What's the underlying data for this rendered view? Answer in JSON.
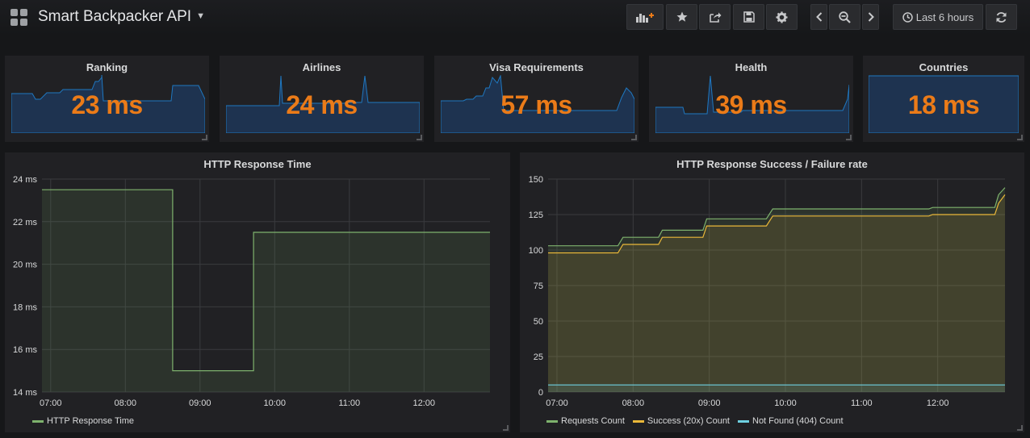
{
  "header": {
    "title": "Smart Backpacker API",
    "time_range": "Last 6 hours"
  },
  "stats": [
    {
      "title": "Ranking",
      "value": "23 ms"
    },
    {
      "title": "Airlines",
      "value": "24 ms"
    },
    {
      "title": "Visa Requirements",
      "value": "57 ms"
    },
    {
      "title": "Health",
      "value": "39 ms"
    },
    {
      "title": "Countries",
      "value": "18 ms"
    }
  ],
  "colors": {
    "background": "#161719",
    "panel": "#212124",
    "stat_value": "#eb7b18",
    "sparkline": "#1f78c1",
    "requests": "#7eb26d",
    "success": "#eab839",
    "not_found": "#6ed0e0"
  },
  "chart_data": [
    {
      "type": "line",
      "title": "HTTP Response Time",
      "x_ticks": [
        "07:00",
        "08:00",
        "09:00",
        "10:00",
        "11:00",
        "12:00"
      ],
      "y_ticks": [
        "14 ms",
        "16 ms",
        "18 ms",
        "20 ms",
        "22 ms",
        "24 ms"
      ],
      "ylim": [
        14,
        24
      ],
      "xlim": [
        "06:53",
        "12:53"
      ],
      "grid": true,
      "legend_position": "bottom-left",
      "series": [
        {
          "name": "HTTP Response Time",
          "color": "#7eb26d",
          "x": [
            "06:53",
            "08:38",
            "08:38",
            "09:43",
            "09:43",
            "12:53"
          ],
          "y": [
            23.5,
            23.5,
            15.0,
            15.0,
            21.5,
            21.5
          ]
        }
      ]
    },
    {
      "type": "area",
      "title": "HTTP Response Success / Failure rate",
      "x_ticks": [
        "07:00",
        "08:00",
        "09:00",
        "10:00",
        "11:00",
        "12:00"
      ],
      "y_ticks": [
        "0",
        "25",
        "50",
        "75",
        "100",
        "125",
        "150"
      ],
      "ylim": [
        0,
        150
      ],
      "xlim": [
        "06:53",
        "12:53"
      ],
      "grid": true,
      "legend_position": "bottom-left",
      "series": [
        {
          "name": "Requests Count",
          "color": "#7eb26d",
          "x": [
            "06:53",
            "07:48",
            "07:52",
            "08:20",
            "08:23",
            "08:55",
            "08:58",
            "09:45",
            "09:50",
            "11:53",
            "11:56",
            "12:45",
            "12:48",
            "12:53"
          ],
          "y": [
            103,
            103,
            109,
            109,
            114,
            114,
            122,
            122,
            129,
            129,
            130,
            130,
            139,
            144
          ]
        },
        {
          "name": "Success (20x) Count",
          "color": "#eab839",
          "x": [
            "06:53",
            "07:48",
            "07:52",
            "08:20",
            "08:23",
            "08:55",
            "08:58",
            "09:45",
            "09:50",
            "11:53",
            "11:56",
            "12:45",
            "12:48",
            "12:53"
          ],
          "y": [
            98,
            98,
            104,
            104,
            109,
            109,
            117,
            117,
            124,
            124,
            125,
            125,
            133,
            139
          ]
        },
        {
          "name": "Not Found (404) Count",
          "color": "#6ed0e0",
          "x": [
            "06:53",
            "12:53"
          ],
          "y": [
            5,
            5
          ]
        }
      ]
    }
  ]
}
